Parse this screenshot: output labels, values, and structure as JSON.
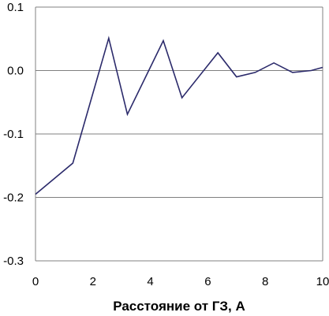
{
  "chart_data": {
    "type": "line",
    "title": "",
    "xlabel": "Расстояние от ГЗ, A",
    "ylabel": "",
    "xlim": [
      0,
      10
    ],
    "ylim": [
      -0.3,
      0.1
    ],
    "grid": "horizontal",
    "x_ticks": [
      0,
      2,
      4,
      6,
      8,
      10
    ],
    "x_tick_labels": [
      "0",
      "2",
      "4",
      "6",
      "8",
      "10"
    ],
    "y_ticks": [
      0.1,
      0.0,
      -0.1,
      -0.2,
      -0.3
    ],
    "y_tick_labels": [
      "0.1",
      "0.0",
      "-0.1",
      "-0.2",
      "-0.3"
    ],
    "series": [
      {
        "color": "#2b2a6b",
        "x": [
          0.0,
          1.3,
          2.55,
          3.2,
          4.45,
          5.1,
          6.35,
          7.0,
          7.65,
          8.3,
          8.95,
          9.6,
          10.0
        ],
        "y": [
          -0.195,
          -0.146,
          0.051,
          -0.069,
          0.047,
          -0.043,
          0.028,
          -0.01,
          -0.003,
          0.012,
          -0.003,
          0.0,
          0.005
        ]
      }
    ]
  }
}
